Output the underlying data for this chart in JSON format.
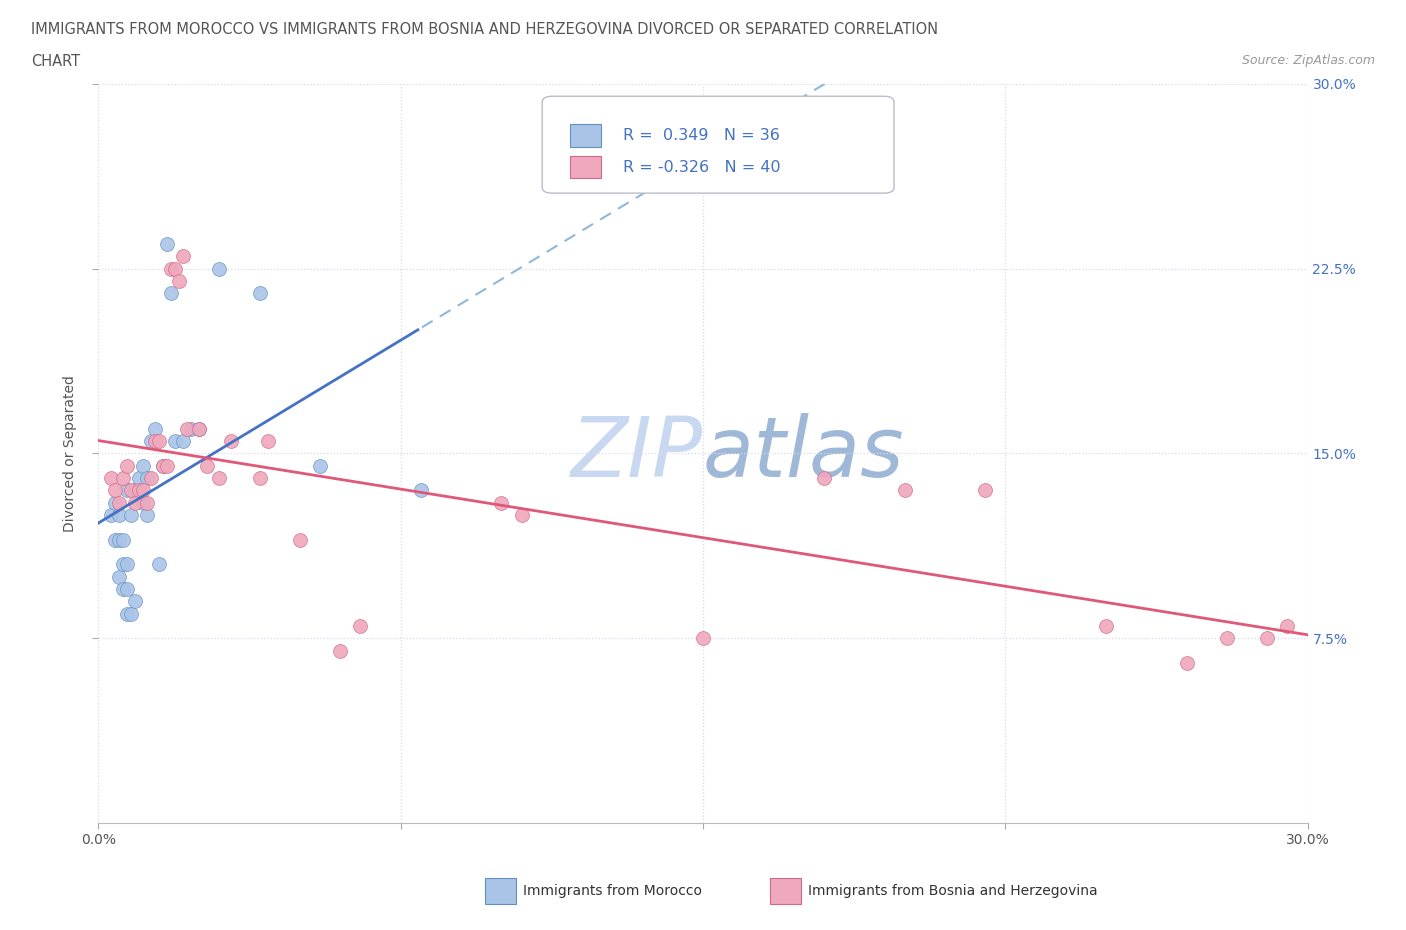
{
  "title_line1": "IMMIGRANTS FROM MOROCCO VS IMMIGRANTS FROM BOSNIA AND HERZEGOVINA DIVORCED OR SEPARATED CORRELATION",
  "title_line2": "CHART",
  "source_text": "Source: ZipAtlas.com",
  "ylabel": "Divorced or Separated",
  "xmin": 0.0,
  "xmax": 0.3,
  "ymin": 0.0,
  "ymax": 0.3,
  "grid_color": "#d8d8ee",
  "background_color": "#ffffff",
  "morocco_color": "#aac4e8",
  "bosnia_color": "#f0a8bc",
  "morocco_edge_color": "#6090c0",
  "bosnia_edge_color": "#d06888",
  "morocco_line_color": "#4472c4",
  "bosnia_line_color": "#e05878",
  "dashed_line_color": "#90b8d8",
  "watermark_color": "#c8d8f0",
  "legend_text_color": "#4472c4",
  "title_color": "#555555",
  "source_color": "#999999",
  "axis_label_color": "#555555",
  "tick_label_color_right": "#4472c4",
  "tick_label_color_bottom": "#555555",
  "R_morocco": 0.349,
  "N_morocco": 36,
  "R_bosnia": -0.326,
  "N_bosnia": 40,
  "morocco_x": [
    0.003,
    0.004,
    0.004,
    0.005,
    0.005,
    0.005,
    0.006,
    0.006,
    0.006,
    0.007,
    0.007,
    0.007,
    0.007,
    0.008,
    0.008,
    0.009,
    0.009,
    0.01,
    0.011,
    0.011,
    0.012,
    0.012,
    0.013,
    0.014,
    0.015,
    0.016,
    0.017,
    0.018,
    0.019,
    0.021,
    0.023,
    0.025,
    0.03,
    0.04,
    0.055,
    0.08
  ],
  "morocco_y": [
    0.125,
    0.115,
    0.13,
    0.1,
    0.115,
    0.125,
    0.095,
    0.105,
    0.115,
    0.085,
    0.095,
    0.105,
    0.135,
    0.085,
    0.125,
    0.09,
    0.135,
    0.14,
    0.13,
    0.145,
    0.125,
    0.14,
    0.155,
    0.16,
    0.105,
    0.145,
    0.235,
    0.215,
    0.155,
    0.155,
    0.16,
    0.16,
    0.225,
    0.215,
    0.145,
    0.135
  ],
  "bosnia_x": [
    0.003,
    0.004,
    0.005,
    0.006,
    0.007,
    0.008,
    0.009,
    0.01,
    0.011,
    0.012,
    0.013,
    0.014,
    0.015,
    0.016,
    0.017,
    0.018,
    0.019,
    0.02,
    0.021,
    0.022,
    0.025,
    0.027,
    0.03,
    0.033,
    0.04,
    0.042,
    0.05,
    0.06,
    0.065,
    0.1,
    0.105,
    0.15,
    0.18,
    0.2,
    0.22,
    0.25,
    0.27,
    0.28,
    0.29,
    0.295
  ],
  "bosnia_y": [
    0.14,
    0.135,
    0.13,
    0.14,
    0.145,
    0.135,
    0.13,
    0.135,
    0.135,
    0.13,
    0.14,
    0.155,
    0.155,
    0.145,
    0.145,
    0.225,
    0.225,
    0.22,
    0.23,
    0.16,
    0.16,
    0.145,
    0.14,
    0.155,
    0.14,
    0.155,
    0.115,
    0.07,
    0.08,
    0.13,
    0.125,
    0.075,
    0.14,
    0.135,
    0.135,
    0.08,
    0.065,
    0.075,
    0.075,
    0.08
  ],
  "bottom_legend_morocco": "Immigrants from Morocco",
  "bottom_legend_bosnia": "Immigrants from Bosnia and Herzegovina",
  "morocco_line_intercept": 0.138,
  "morocco_line_slope": 0.34,
  "bosnia_line_intercept": 0.142,
  "bosnia_line_slope": -0.21
}
